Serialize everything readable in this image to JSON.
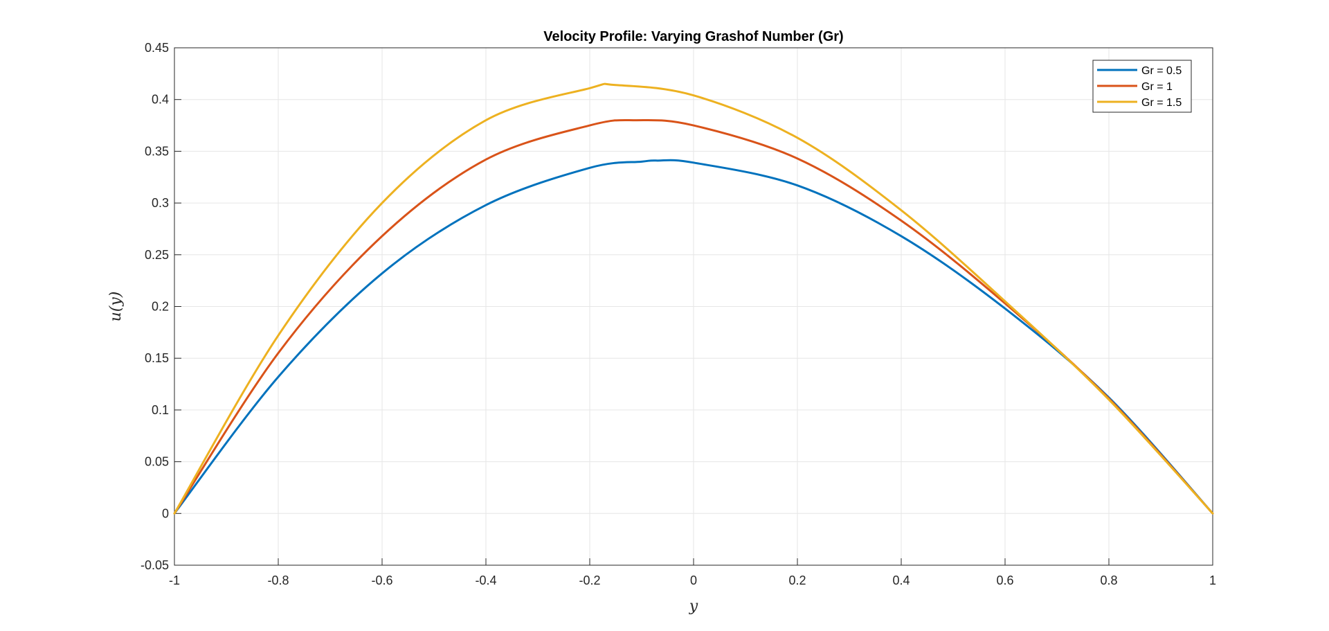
{
  "chart_data": {
    "type": "line",
    "title": "Velocity Profile: Varying Grashof Number (Gr)",
    "xlabel": "y",
    "ylabel": "u(y)",
    "xlim": [
      -1,
      1
    ],
    "ylim": [
      -0.05,
      0.45
    ],
    "xticks": [
      -1,
      -0.8,
      -0.6,
      -0.4,
      -0.2,
      0,
      0.2,
      0.4,
      0.6,
      0.8,
      1
    ],
    "xtick_labels": [
      "-1",
      "-0.8",
      "-0.6",
      "-0.4",
      "-0.2",
      "0",
      "0.2",
      "0.4",
      "0.6",
      "0.8",
      "1"
    ],
    "yticks": [
      -0.05,
      0,
      0.05,
      0.1,
      0.15,
      0.2,
      0.25,
      0.3,
      0.35,
      0.4,
      0.45
    ],
    "ytick_labels": [
      "-0.05",
      "0",
      "0.05",
      "0.1",
      "0.15",
      "0.2",
      "0.25",
      "0.3",
      "0.35",
      "0.4",
      "0.45"
    ],
    "grid": true,
    "legend_position": "top-right",
    "series": [
      {
        "name": "Gr = 0.5",
        "color": "#0072BD",
        "x": [
          -1,
          -0.8,
          -0.6,
          -0.4,
          -0.2,
          -0.1,
          -0.07,
          0,
          0.2,
          0.4,
          0.6,
          0.8,
          1
        ],
        "y": [
          0,
          0.132,
          0.232,
          0.298,
          0.334,
          0.34,
          0.341,
          0.339,
          0.317,
          0.268,
          0.198,
          0.112,
          0
        ]
      },
      {
        "name": "Gr = 1",
        "color": "#D95319",
        "x": [
          -1,
          -0.8,
          -0.6,
          -0.4,
          -0.2,
          -0.11,
          0,
          0.2,
          0.4,
          0.6,
          0.8,
          1
        ],
        "y": [
          0,
          0.155,
          0.268,
          0.342,
          0.375,
          0.38,
          0.375,
          0.343,
          0.283,
          0.203,
          0.111,
          0
        ]
      },
      {
        "name": "Gr = 1.5",
        "color": "#EDB120",
        "x": [
          -1,
          -0.8,
          -0.6,
          -0.4,
          -0.2,
          -0.15,
          0,
          0.2,
          0.4,
          0.6,
          0.8,
          1
        ],
        "y": [
          0,
          0.172,
          0.3,
          0.38,
          0.411,
          0.414,
          0.404,
          0.363,
          0.293,
          0.205,
          0.11,
          0
        ]
      }
    ]
  }
}
